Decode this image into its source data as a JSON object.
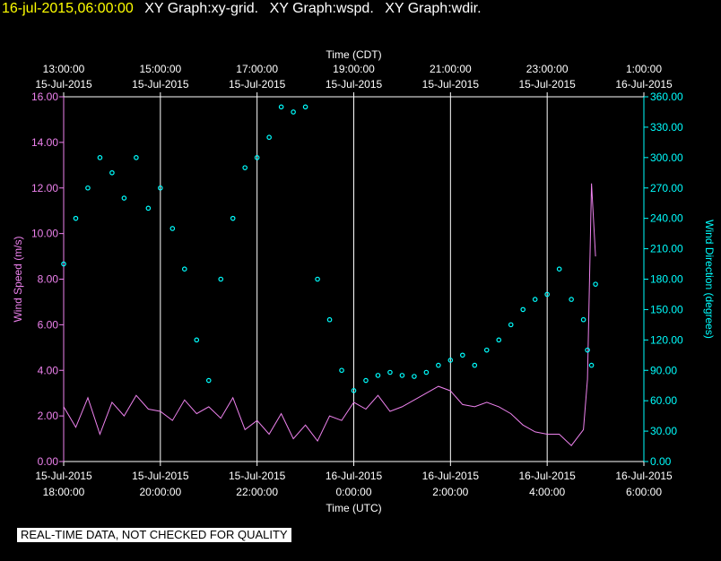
{
  "header": {
    "timestamp": "16-jul-2015,06:00:00",
    "graphs": [
      "XY Graph:xy-grid.",
      "XY Graph:wspd.",
      "XY Graph:wdir."
    ]
  },
  "disclaimer": "REAL-TIME DATA, NOT CHECKED FOR QUALITY",
  "colors": {
    "speed": "#ee82ee",
    "direction": "#00ffff",
    "grid": "#ffffff",
    "background": "#000000",
    "header": "#ffff00"
  },
  "chart_data": {
    "type": "scatter",
    "top_axis": {
      "label": "Time (CDT)",
      "ticks": [
        {
          "time": "13:00:00",
          "date": "15-Jul-2015"
        },
        {
          "time": "15:00:00",
          "date": "15-Jul-2015"
        },
        {
          "time": "17:00:00",
          "date": "15-Jul-2015"
        },
        {
          "time": "19:00:00",
          "date": "15-Jul-2015"
        },
        {
          "time": "21:00:00",
          "date": "15-Jul-2015"
        },
        {
          "time": "23:00:00",
          "date": "15-Jul-2015"
        },
        {
          "time": "1:00:00",
          "date": "16-Jul-2015"
        }
      ]
    },
    "bottom_axis": {
      "label": "Time (UTC)",
      "ticks": [
        {
          "date": "15-Jul-2015",
          "time": "18:00:00"
        },
        {
          "date": "15-Jul-2015",
          "time": "20:00:00"
        },
        {
          "date": "15-Jul-2015",
          "time": "22:00:00"
        },
        {
          "date": "16-Jul-2015",
          "time": "0:00:00"
        },
        {
          "date": "16-Jul-2015",
          "time": "2:00:00"
        },
        {
          "date": "16-Jul-2015",
          "time": "4:00:00"
        },
        {
          "date": "16-Jul-2015",
          "time": "6:00:00"
        }
      ],
      "xlim_utc": [
        "2015-07-15T18:00",
        "2015-07-16T06:00"
      ]
    },
    "left_axis": {
      "label": "Wind Speed (m/s)",
      "ylim": [
        0,
        16
      ],
      "ticks": [
        "0.00",
        "2.00",
        "4.00",
        "6.00",
        "8.00",
        "10.00",
        "12.00",
        "14.00",
        "16.00"
      ]
    },
    "right_axis": {
      "label": "Wind Direction (degrees)",
      "ylim": [
        0,
        360
      ],
      "ticks": [
        "0.00",
        "30.00",
        "60.00",
        "90.00",
        "120.00",
        "150.00",
        "180.00",
        "210.00",
        "240.00",
        "270.00",
        "300.00",
        "330.00",
        "360.00"
      ]
    },
    "grid": "vertical lines at each time tick",
    "series": [
      {
        "name": "wspd",
        "style": "line",
        "x_utc": [
          "2015-07-15T18:00",
          "2015-07-15T18:15",
          "2015-07-15T18:30",
          "2015-07-15T18:45",
          "2015-07-15T19:00",
          "2015-07-15T19:15",
          "2015-07-15T19:30",
          "2015-07-15T19:45",
          "2015-07-15T20:00",
          "2015-07-15T20:15",
          "2015-07-15T20:30",
          "2015-07-15T20:45",
          "2015-07-15T21:00",
          "2015-07-15T21:15",
          "2015-07-15T21:30",
          "2015-07-15T21:45",
          "2015-07-15T22:00",
          "2015-07-15T22:15",
          "2015-07-15T22:30",
          "2015-07-15T22:45",
          "2015-07-15T23:00",
          "2015-07-15T23:15",
          "2015-07-15T23:30",
          "2015-07-15T23:45",
          "2015-07-16T00:00",
          "2015-07-16T00:15",
          "2015-07-16T00:30",
          "2015-07-16T00:45",
          "2015-07-16T01:00",
          "2015-07-16T01:15",
          "2015-07-16T01:30",
          "2015-07-16T01:45",
          "2015-07-16T02:00",
          "2015-07-16T02:15",
          "2015-07-16T02:30",
          "2015-07-16T02:45",
          "2015-07-16T03:00",
          "2015-07-16T03:15",
          "2015-07-16T03:30",
          "2015-07-16T03:45",
          "2015-07-16T04:00",
          "2015-07-16T04:15",
          "2015-07-16T04:30",
          "2015-07-16T04:45",
          "2015-07-16T04:50",
          "2015-07-16T04:55",
          "2015-07-16T05:00"
        ],
        "y": [
          2.4,
          1.5,
          2.8,
          1.2,
          2.6,
          2.0,
          2.9,
          2.3,
          2.2,
          1.8,
          2.7,
          2.1,
          2.4,
          1.9,
          2.8,
          1.4,
          1.8,
          1.2,
          2.1,
          1.0,
          1.6,
          0.9,
          2.0,
          1.8,
          2.6,
          2.3,
          2.9,
          2.2,
          2.4,
          2.7,
          3.0,
          3.3,
          3.1,
          2.5,
          2.4,
          2.6,
          2.4,
          2.1,
          1.6,
          1.3,
          1.2,
          1.2,
          0.7,
          1.4,
          3.6,
          12.2,
          9.0
        ]
      },
      {
        "name": "wdir",
        "style": "markers",
        "x_utc": [
          "2015-07-15T18:00",
          "2015-07-15T18:15",
          "2015-07-15T18:30",
          "2015-07-15T18:45",
          "2015-07-15T19:00",
          "2015-07-15T19:15",
          "2015-07-15T19:30",
          "2015-07-15T19:45",
          "2015-07-15T20:00",
          "2015-07-15T20:15",
          "2015-07-15T20:30",
          "2015-07-15T20:45",
          "2015-07-15T21:00",
          "2015-07-15T21:15",
          "2015-07-15T21:30",
          "2015-07-15T21:45",
          "2015-07-15T22:00",
          "2015-07-15T22:15",
          "2015-07-15T22:30",
          "2015-07-15T22:45",
          "2015-07-15T23:00",
          "2015-07-15T23:15",
          "2015-07-15T23:30",
          "2015-07-15T23:45",
          "2015-07-16T00:00",
          "2015-07-16T00:15",
          "2015-07-16T00:30",
          "2015-07-16T00:45",
          "2015-07-16T01:00",
          "2015-07-16T01:15",
          "2015-07-16T01:30",
          "2015-07-16T01:45",
          "2015-07-16T02:00",
          "2015-07-16T02:15",
          "2015-07-16T02:30",
          "2015-07-16T02:45",
          "2015-07-16T03:00",
          "2015-07-16T03:15",
          "2015-07-16T03:30",
          "2015-07-16T03:45",
          "2015-07-16T04:00",
          "2015-07-16T04:15",
          "2015-07-16T04:30",
          "2015-07-16T04:45",
          "2015-07-16T04:50",
          "2015-07-16T04:55",
          "2015-07-16T05:00"
        ],
        "y": [
          195,
          240,
          270,
          300,
          285,
          260,
          300,
          250,
          270,
          230,
          190,
          120,
          80,
          180,
          240,
          290,
          300,
          320,
          350,
          345,
          350,
          180,
          140,
          90,
          70,
          80,
          85,
          88,
          85,
          84,
          88,
          95,
          100,
          105,
          95,
          110,
          120,
          135,
          150,
          160,
          165,
          190,
          160,
          140,
          110,
          95,
          175
        ]
      }
    ]
  }
}
